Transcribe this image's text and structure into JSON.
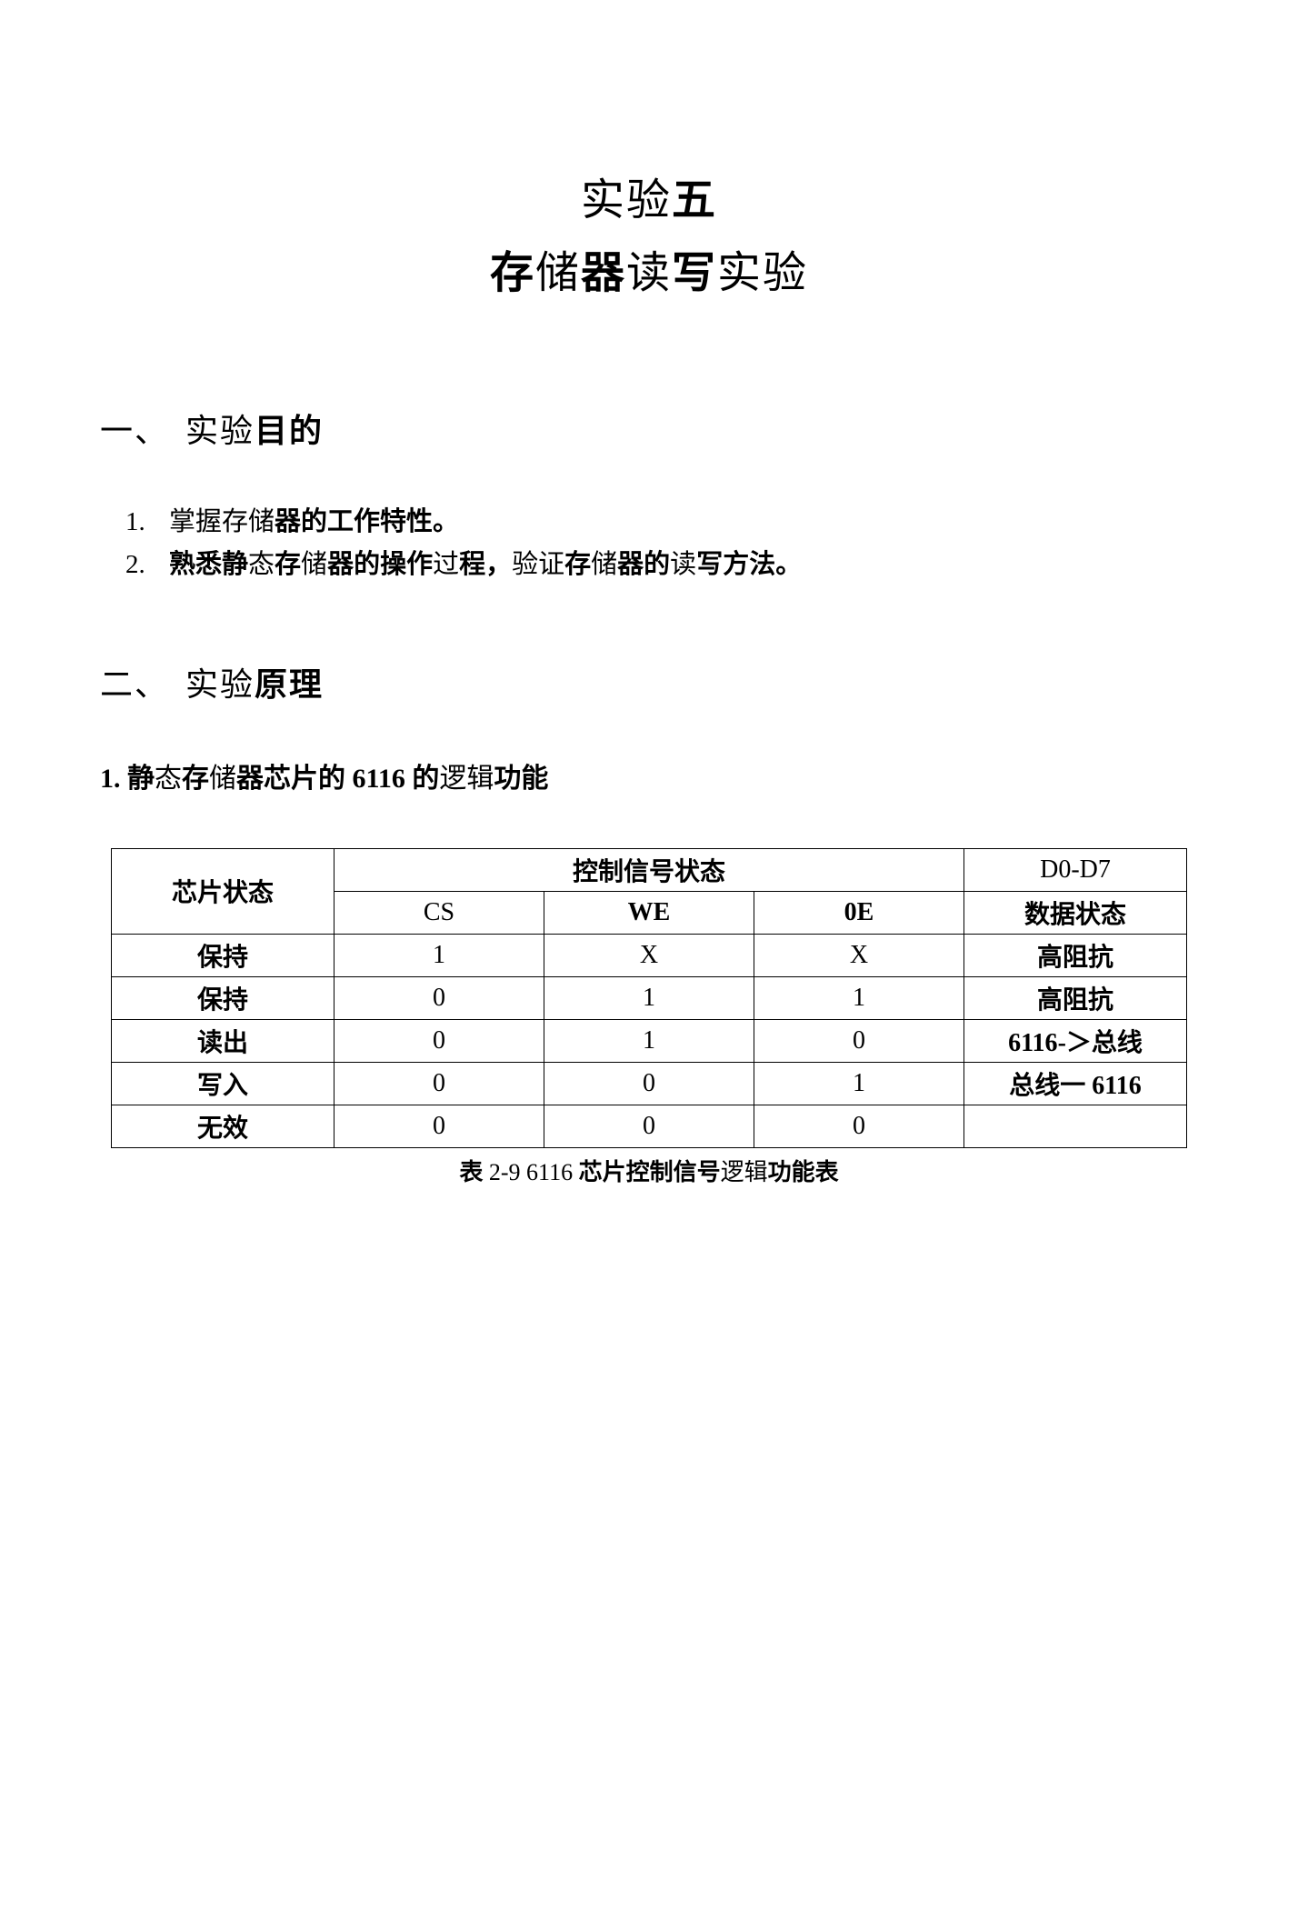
{
  "title": {
    "line1_pre": "实",
    "line1_mid": "验",
    "line1_bold": "五",
    "line2_bold1": "存",
    "line2_t1": "储",
    "line2_bold2": "器",
    "line2_t2": "读",
    "line2_bold3": "写",
    "line2_t3": "实",
    "line2_t4": "验"
  },
  "section1": {
    "num": "一、",
    "t1": "实",
    "t2": "验",
    "b1": "目的"
  },
  "list": {
    "items": [
      {
        "num": "1.",
        "segments": [
          {
            "t": "掌握存",
            "b": false
          },
          {
            "t": "储",
            "b": false
          },
          {
            "t": "器的工作特性。",
            "b": true
          }
        ]
      },
      {
        "num": "2.",
        "segments": [
          {
            "t": "熟悉静",
            "b": true
          },
          {
            "t": "态",
            "b": false
          },
          {
            "t": "存",
            "b": true
          },
          {
            "t": "储",
            "b": false
          },
          {
            "t": "器的操作",
            "b": true
          },
          {
            "t": "过",
            "b": false
          },
          {
            "t": "程，",
            "b": true
          },
          {
            "t": "验证",
            "b": false
          },
          {
            "t": "存",
            "b": true
          },
          {
            "t": "储",
            "b": false
          },
          {
            "t": "器的",
            "b": true
          },
          {
            "t": "读",
            "b": false
          },
          {
            "t": "写方法。",
            "b": true
          }
        ]
      }
    ]
  },
  "section2": {
    "num": "二、",
    "t1": "实",
    "t2": "验",
    "b1": "原理"
  },
  "sub1": {
    "pre": "1. 静",
    "t1": "态",
    "b1": "存",
    "t2": "储",
    "b2": "器芯片的 ",
    "en": "6116",
    "b3": " 的",
    "t3": "逻辑",
    "b4": "功能"
  },
  "table": {
    "header": {
      "state": "芯片状态",
      "signal_group": "控制信号状态",
      "cs": "CS",
      "we": "WE",
      "oe": "0E",
      "d_top": "D0-D7",
      "d_bottom": "数据状态"
    },
    "rows": [
      {
        "state": "保持",
        "cs": "1",
        "we": "X",
        "oe": "X",
        "data": "高阻抗"
      },
      {
        "state": "保持",
        "cs": "0",
        "we": "1",
        "oe": "1",
        "data": "高阻抗"
      },
      {
        "state": "读出",
        "cs": "0",
        "we": "1",
        "oe": "0",
        "data": "6116-＞总线"
      },
      {
        "state": "写入",
        "cs": "0",
        "we": "0",
        "oe": "1",
        "data": "总线一 6116"
      },
      {
        "state": "无效",
        "cs": "0",
        "we": "0",
        "oe": "0",
        "data": ""
      }
    ],
    "caption": {
      "pre": "表 ",
      "num": "2-9 6116",
      "mid": " 芯片控制信号",
      "t1": "逻辑",
      "post": "功能表"
    }
  },
  "style": {
    "background": "#ffffff",
    "text_color": "#000000",
    "border_color": "#000000",
    "title_fontsize": 48,
    "section_fontsize": 36,
    "body_fontsize": 29,
    "table_fontsize": 28
  }
}
